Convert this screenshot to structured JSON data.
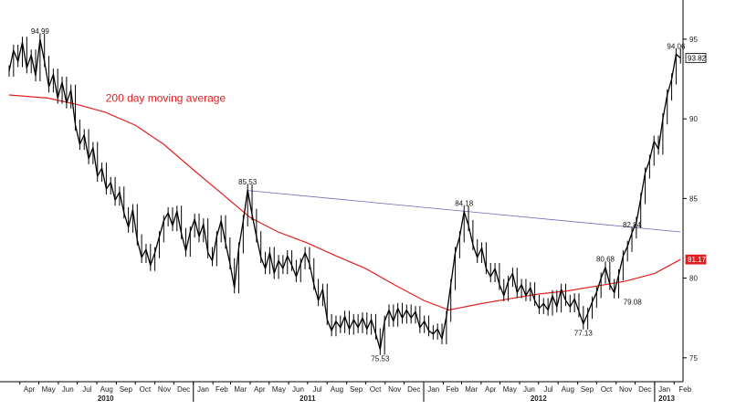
{
  "chart_data": {
    "type": "line",
    "title": "",
    "xlabel": "",
    "ylabel": "",
    "ylim": [
      73.5,
      97
    ],
    "x_range": [
      "2010-03-15",
      "2013-02-15"
    ],
    "y_ticks": [
      75,
      80,
      85,
      90,
      95
    ],
    "y_tick_labels": [
      "75",
      "80",
      "85",
      "90",
      "95"
    ],
    "months": [
      {
        "label": "Apr",
        "date": "2010-04-01"
      },
      {
        "label": "May",
        "date": "2010-05-01"
      },
      {
        "label": "Jun",
        "date": "2010-06-01"
      },
      {
        "label": "Jul",
        "date": "2010-07-01"
      },
      {
        "label": "Aug",
        "date": "2010-08-01"
      },
      {
        "label": "Sep",
        "date": "2010-09-01"
      },
      {
        "label": "Oct",
        "date": "2010-10-01"
      },
      {
        "label": "Nov",
        "date": "2010-11-01"
      },
      {
        "label": "Dec",
        "date": "2010-12-01"
      },
      {
        "label": "Jan",
        "date": "2011-01-01"
      },
      {
        "label": "Feb",
        "date": "2011-02-01"
      },
      {
        "label": "Mar",
        "date": "2011-03-01"
      },
      {
        "label": "Apr",
        "date": "2011-04-01"
      },
      {
        "label": "May",
        "date": "2011-05-01"
      },
      {
        "label": "Jun",
        "date": "2011-06-01"
      },
      {
        "label": "Jul",
        "date": "2011-07-01"
      },
      {
        "label": "Aug",
        "date": "2011-08-01"
      },
      {
        "label": "Sep",
        "date": "2011-09-01"
      },
      {
        "label": "Oct",
        "date": "2011-10-01"
      },
      {
        "label": "Nov",
        "date": "2011-11-01"
      },
      {
        "label": "Dec",
        "date": "2011-12-01"
      },
      {
        "label": "Jan",
        "date": "2012-01-01"
      },
      {
        "label": "Feb",
        "date": "2012-02-01"
      },
      {
        "label": "Mar",
        "date": "2012-03-01"
      },
      {
        "label": "Apr",
        "date": "2012-04-01"
      },
      {
        "label": "May",
        "date": "2012-05-01"
      },
      {
        "label": "Jun",
        "date": "2012-06-01"
      },
      {
        "label": "Jul",
        "date": "2012-07-01"
      },
      {
        "label": "Aug",
        "date": "2012-08-01"
      },
      {
        "label": "Sep",
        "date": "2012-09-01"
      },
      {
        "label": "Oct",
        "date": "2012-10-01"
      },
      {
        "label": "Nov",
        "date": "2012-11-01"
      },
      {
        "label": "Dec",
        "date": "2012-12-01"
      },
      {
        "label": "Jan",
        "date": "2013-01-01"
      },
      {
        "label": "Feb",
        "date": "2013-02-01"
      }
    ],
    "years": [
      {
        "label": "2010",
        "date": "2010-08-15"
      },
      {
        "label": "2011",
        "date": "2011-07-01"
      },
      {
        "label": "2012",
        "date": "2012-07-01"
      },
      {
        "label": "2013",
        "date": "2013-01-20"
      }
    ],
    "series": [
      {
        "type": "price",
        "color": "#000000",
        "points": [
          [
            "2010-03-15",
            93.0
          ],
          [
            "2010-03-22",
            94.3
          ],
          [
            "2010-03-29",
            93.6
          ],
          [
            "2010-04-05",
            94.8
          ],
          [
            "2010-04-12",
            93.2
          ],
          [
            "2010-04-19",
            94.0
          ],
          [
            "2010-04-26",
            92.7
          ],
          [
            "2010-05-03",
            94.99
          ],
          [
            "2010-05-10",
            93.6
          ],
          [
            "2010-05-17",
            92.0
          ],
          [
            "2010-05-24",
            92.8
          ],
          [
            "2010-05-31",
            91.3
          ],
          [
            "2010-06-07",
            92.3
          ],
          [
            "2010-06-14",
            91.0
          ],
          [
            "2010-06-21",
            91.8
          ],
          [
            "2010-06-28",
            89.6
          ],
          [
            "2010-07-05",
            88.4
          ],
          [
            "2010-07-12",
            89.0
          ],
          [
            "2010-07-19",
            87.5
          ],
          [
            "2010-07-26",
            88.2
          ],
          [
            "2010-08-02",
            86.4
          ],
          [
            "2010-08-09",
            86.9
          ],
          [
            "2010-08-16",
            85.6
          ],
          [
            "2010-08-23",
            86.0
          ],
          [
            "2010-08-30",
            84.9
          ],
          [
            "2010-09-06",
            85.4
          ],
          [
            "2010-09-13",
            84.1
          ],
          [
            "2010-09-20",
            83.2
          ],
          [
            "2010-09-27",
            84.3
          ],
          [
            "2010-10-04",
            82.4
          ],
          [
            "2010-10-11",
            81.3
          ],
          [
            "2010-10-18",
            81.8
          ],
          [
            "2010-10-25",
            80.8
          ],
          [
            "2010-11-01",
            81.6
          ],
          [
            "2010-11-08",
            82.6
          ],
          [
            "2010-11-15",
            83.6
          ],
          [
            "2010-11-22",
            84.1
          ],
          [
            "2010-11-29",
            83.3
          ],
          [
            "2010-12-06",
            84.2
          ],
          [
            "2010-12-13",
            82.8
          ],
          [
            "2010-12-20",
            81.7
          ],
          [
            "2010-12-27",
            82.9
          ],
          [
            "2011-01-03",
            83.7
          ],
          [
            "2011-01-10",
            82.6
          ],
          [
            "2011-01-17",
            83.4
          ],
          [
            "2011-01-24",
            81.6
          ],
          [
            "2011-01-31",
            81.1
          ],
          [
            "2011-02-07",
            82.6
          ],
          [
            "2011-02-14",
            83.6
          ],
          [
            "2011-02-21",
            82.2
          ],
          [
            "2011-02-28",
            80.9
          ],
          [
            "2011-03-07",
            79.4
          ],
          [
            "2011-03-14",
            81.9
          ],
          [
            "2011-03-21",
            83.6
          ],
          [
            "2011-03-28",
            85.53
          ],
          [
            "2011-04-04",
            84.0
          ],
          [
            "2011-04-11",
            82.6
          ],
          [
            "2011-04-18",
            81.3
          ],
          [
            "2011-04-25",
            80.6
          ],
          [
            "2011-05-02",
            81.6
          ],
          [
            "2011-05-09",
            80.3
          ],
          [
            "2011-05-16",
            81.1
          ],
          [
            "2011-05-23",
            80.6
          ],
          [
            "2011-05-30",
            81.4
          ],
          [
            "2011-06-06",
            80.8
          ],
          [
            "2011-06-13",
            80.1
          ],
          [
            "2011-06-20",
            80.9
          ],
          [
            "2011-06-27",
            81.6
          ],
          [
            "2011-07-04",
            80.9
          ],
          [
            "2011-07-11",
            79.6
          ],
          [
            "2011-07-18",
            78.6
          ],
          [
            "2011-07-25",
            79.3
          ],
          [
            "2011-08-01",
            77.4
          ],
          [
            "2011-08-08",
            76.7
          ],
          [
            "2011-08-15",
            77.3
          ],
          [
            "2011-08-22",
            76.9
          ],
          [
            "2011-08-29",
            77.6
          ],
          [
            "2011-09-05",
            76.8
          ],
          [
            "2011-09-12",
            77.4
          ],
          [
            "2011-09-19",
            76.9
          ],
          [
            "2011-09-26",
            77.5
          ],
          [
            "2011-10-03",
            76.8
          ],
          [
            "2011-10-10",
            77.4
          ],
          [
            "2011-10-17",
            76.5
          ],
          [
            "2011-10-24",
            75.53
          ],
          [
            "2011-10-31",
            77.3
          ],
          [
            "2011-11-07",
            78.0
          ],
          [
            "2011-11-14",
            77.3
          ],
          [
            "2011-11-21",
            78.1
          ],
          [
            "2011-11-28",
            77.5
          ],
          [
            "2011-12-05",
            78.0
          ],
          [
            "2011-12-12",
            77.5
          ],
          [
            "2011-12-19",
            77.9
          ],
          [
            "2011-12-26",
            76.9
          ],
          [
            "2012-01-02",
            77.3
          ],
          [
            "2012-01-09",
            76.7
          ],
          [
            "2012-01-16",
            76.5
          ],
          [
            "2012-01-23",
            76.8
          ],
          [
            "2012-01-30",
            76.2
          ],
          [
            "2012-02-06",
            77.6
          ],
          [
            "2012-02-13",
            79.6
          ],
          [
            "2012-02-20",
            81.6
          ],
          [
            "2012-02-27",
            82.6
          ],
          [
            "2012-03-05",
            84.18
          ],
          [
            "2012-03-12",
            83.3
          ],
          [
            "2012-03-19",
            82.1
          ],
          [
            "2012-03-26",
            81.3
          ],
          [
            "2012-04-02",
            81.9
          ],
          [
            "2012-04-09",
            80.6
          ],
          [
            "2012-04-16",
            80.1
          ],
          [
            "2012-04-23",
            80.6
          ],
          [
            "2012-04-30",
            79.6
          ],
          [
            "2012-05-07",
            78.9
          ],
          [
            "2012-05-14",
            79.8
          ],
          [
            "2012-05-21",
            80.3
          ],
          [
            "2012-05-28",
            79.1
          ],
          [
            "2012-06-04",
            79.6
          ],
          [
            "2012-06-11",
            78.9
          ],
          [
            "2012-06-18",
            79.4
          ],
          [
            "2012-06-25",
            78.6
          ],
          [
            "2012-07-02",
            78.1
          ],
          [
            "2012-07-09",
            78.4
          ],
          [
            "2012-07-16",
            78.0
          ],
          [
            "2012-07-23",
            78.9
          ],
          [
            "2012-07-30",
            78.2
          ],
          [
            "2012-08-06",
            79.3
          ],
          [
            "2012-08-13",
            78.6
          ],
          [
            "2012-08-20",
            78.2
          ],
          [
            "2012-08-27",
            78.7
          ],
          [
            "2012-09-03",
            77.9
          ],
          [
            "2012-09-10",
            77.13
          ],
          [
            "2012-09-17",
            77.8
          ],
          [
            "2012-09-24",
            78.5
          ],
          [
            "2012-10-01",
            79.1
          ],
          [
            "2012-10-08",
            80.0
          ],
          [
            "2012-10-15",
            80.68
          ],
          [
            "2012-10-22",
            79.6
          ],
          [
            "2012-10-29",
            79.08
          ],
          [
            "2012-11-05",
            80.2
          ],
          [
            "2012-11-12",
            81.4
          ],
          [
            "2012-11-19",
            82.0
          ],
          [
            "2012-11-26",
            82.84
          ],
          [
            "2012-12-03",
            83.5
          ],
          [
            "2012-12-10",
            85.0
          ],
          [
            "2012-12-17",
            86.6
          ],
          [
            "2012-12-24",
            87.4
          ],
          [
            "2012-12-31",
            88.6
          ],
          [
            "2013-01-07",
            88.1
          ],
          [
            "2013-01-14",
            90.0
          ],
          [
            "2013-01-21",
            91.5
          ],
          [
            "2013-01-28",
            92.5
          ],
          [
            "2013-02-04",
            94.06
          ],
          [
            "2013-02-11",
            93.82
          ]
        ]
      },
      {
        "name": "200 day moving average",
        "type": "ma",
        "color": "#e02020",
        "points": [
          [
            "2010-03-15",
            91.5
          ],
          [
            "2010-05-15",
            91.3
          ],
          [
            "2010-07-01",
            90.9
          ],
          [
            "2010-08-15",
            90.4
          ],
          [
            "2010-10-01",
            89.6
          ],
          [
            "2010-11-15",
            88.4
          ],
          [
            "2011-01-01",
            86.8
          ],
          [
            "2011-02-15",
            85.3
          ],
          [
            "2011-04-01",
            83.8
          ],
          [
            "2011-05-15",
            82.9
          ],
          [
            "2011-07-01",
            82.2
          ],
          [
            "2011-08-15",
            81.4
          ],
          [
            "2011-10-01",
            80.6
          ],
          [
            "2011-11-15",
            79.6
          ],
          [
            "2012-01-01",
            78.6
          ],
          [
            "2012-02-10",
            78.0
          ],
          [
            "2012-04-01",
            78.4
          ],
          [
            "2012-05-15",
            78.7
          ],
          [
            "2012-07-01",
            79.0
          ],
          [
            "2012-08-15",
            79.2
          ],
          [
            "2012-10-01",
            79.5
          ],
          [
            "2012-11-15",
            79.8
          ],
          [
            "2013-01-01",
            80.3
          ],
          [
            "2013-02-11",
            81.17
          ]
        ]
      },
      {
        "type": "trendline",
        "color": "#6a6ab8",
        "points": [
          [
            "2011-03-28",
            85.5
          ],
          [
            "2013-02-11",
            82.9
          ]
        ]
      }
    ],
    "ma_label": "200 day moving average",
    "last_values": [
      {
        "label": "93.82",
        "value": 93.82,
        "color": "#000000",
        "fill": "#ffffff"
      },
      {
        "label": "81.17",
        "value": 81.17,
        "color": "#ffffff",
        "fill": "#e02020"
      }
    ],
    "annotations": [
      {
        "label": "94.99",
        "date": "2010-05-03",
        "value": 94.99,
        "pos": "above"
      },
      {
        "label": "85.53",
        "date": "2011-03-28",
        "value": 85.53,
        "pos": "above"
      },
      {
        "label": "75.53",
        "date": "2011-10-24",
        "value": 75.53,
        "pos": "below"
      },
      {
        "label": "84.18",
        "date": "2012-03-05",
        "value": 84.18,
        "pos": "above"
      },
      {
        "label": "77.13",
        "date": "2012-09-10",
        "value": 77.13,
        "pos": "below"
      },
      {
        "label": "80.68",
        "date": "2012-10-15",
        "value": 80.68,
        "pos": "above"
      },
      {
        "label": "79.08",
        "date": "2012-10-29",
        "value": 79.08,
        "pos": "belowright"
      },
      {
        "label": "82.84",
        "date": "2012-11-26",
        "value": 82.84,
        "pos": "above"
      },
      {
        "label": "94.06",
        "date": "2013-02-04",
        "value": 94.06,
        "pos": "above"
      }
    ],
    "grid": false,
    "legend": "none"
  }
}
